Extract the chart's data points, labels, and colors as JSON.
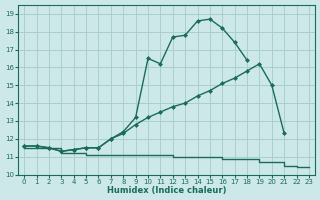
{
  "xlabel": "Humidex (Indice chaleur)",
  "background_color": "#cce8e8",
  "line_color": "#1a6b5a",
  "grid_color": "#aacfcf",
  "xlim": [
    -0.5,
    23.5
  ],
  "ylim": [
    10,
    19.5
  ],
  "yticks": [
    10,
    11,
    12,
    13,
    14,
    15,
    16,
    17,
    18,
    19
  ],
  "xticks": [
    0,
    1,
    2,
    3,
    4,
    5,
    6,
    7,
    8,
    9,
    10,
    11,
    12,
    13,
    14,
    15,
    16,
    17,
    18,
    19,
    20,
    21,
    22,
    23
  ],
  "curve_step_x": [
    0,
    1,
    2,
    3,
    4,
    5,
    6,
    7,
    8,
    9,
    10,
    11,
    12,
    13,
    14,
    15,
    16,
    17,
    18,
    19,
    20,
    21,
    22,
    23
  ],
  "curve_step_y": [
    11.5,
    11.5,
    11.5,
    11.2,
    11.2,
    11.1,
    11.1,
    11.1,
    11.1,
    11.1,
    11.1,
    11.1,
    11.0,
    11.0,
    11.0,
    11.0,
    10.9,
    10.9,
    10.9,
    10.7,
    10.7,
    10.5,
    10.4,
    10.4
  ],
  "curve_mid_x": [
    0,
    1,
    2,
    3,
    4,
    5,
    6,
    7,
    8,
    9,
    10,
    11,
    12,
    13,
    14,
    15,
    16,
    17,
    18,
    19,
    20,
    21
  ],
  "curve_mid_y": [
    11.6,
    11.6,
    11.5,
    11.3,
    11.4,
    11.5,
    11.5,
    12.0,
    12.3,
    12.8,
    13.2,
    13.5,
    13.8,
    14.0,
    14.4,
    14.7,
    15.1,
    15.4,
    15.8,
    16.2,
    15.0,
    12.3
  ],
  "curve_top_x": [
    0,
    1,
    2,
    3,
    4,
    5,
    6,
    7,
    8,
    9,
    10,
    11,
    12,
    13,
    14,
    15,
    16,
    17,
    18
  ],
  "curve_top_y": [
    11.6,
    11.6,
    11.5,
    11.3,
    11.4,
    11.5,
    11.5,
    12.0,
    12.4,
    13.2,
    16.5,
    16.2,
    17.7,
    17.8,
    18.6,
    18.7,
    18.2,
    17.4,
    16.4
  ]
}
